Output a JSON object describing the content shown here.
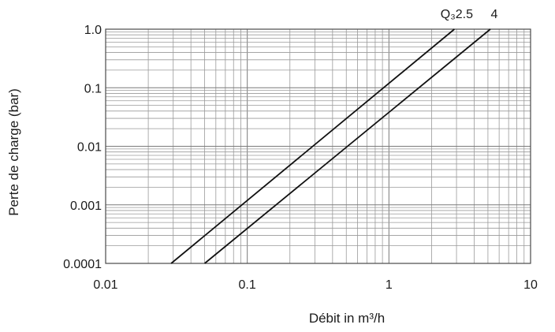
{
  "chart_data": {
    "type": "line",
    "title": "",
    "xlabel": "Débit in m³/h",
    "ylabel": "Perte de charge (bar)",
    "x_scale": "log",
    "y_scale": "log",
    "xlim": [
      0.01,
      10
    ],
    "ylim": [
      0.0001,
      1
    ],
    "x_ticks": [
      {
        "value": 0.01,
        "label": "0.01"
      },
      {
        "value": 0.1,
        "label": "0.1"
      },
      {
        "value": 1,
        "label": "1"
      },
      {
        "value": 10,
        "label": "10"
      }
    ],
    "y_ticks": [
      {
        "value": 0.0001,
        "label": "0.0001"
      },
      {
        "value": 0.001,
        "label": "0.001"
      },
      {
        "value": 0.01,
        "label": "0.01"
      },
      {
        "value": 0.1,
        "label": "0.1"
      },
      {
        "value": 1,
        "label": "1.0"
      }
    ],
    "grid": true,
    "legend": "none",
    "series": [
      {
        "name": "Q₃2.5",
        "points": [
          {
            "x": 0.029,
            "y": 0.0001
          },
          {
            "x": 2.9,
            "y": 1
          }
        ]
      },
      {
        "name": "4",
        "points": [
          {
            "x": 0.05,
            "y": 0.0001
          },
          {
            "x": 5.2,
            "y": 1
          }
        ]
      }
    ]
  }
}
